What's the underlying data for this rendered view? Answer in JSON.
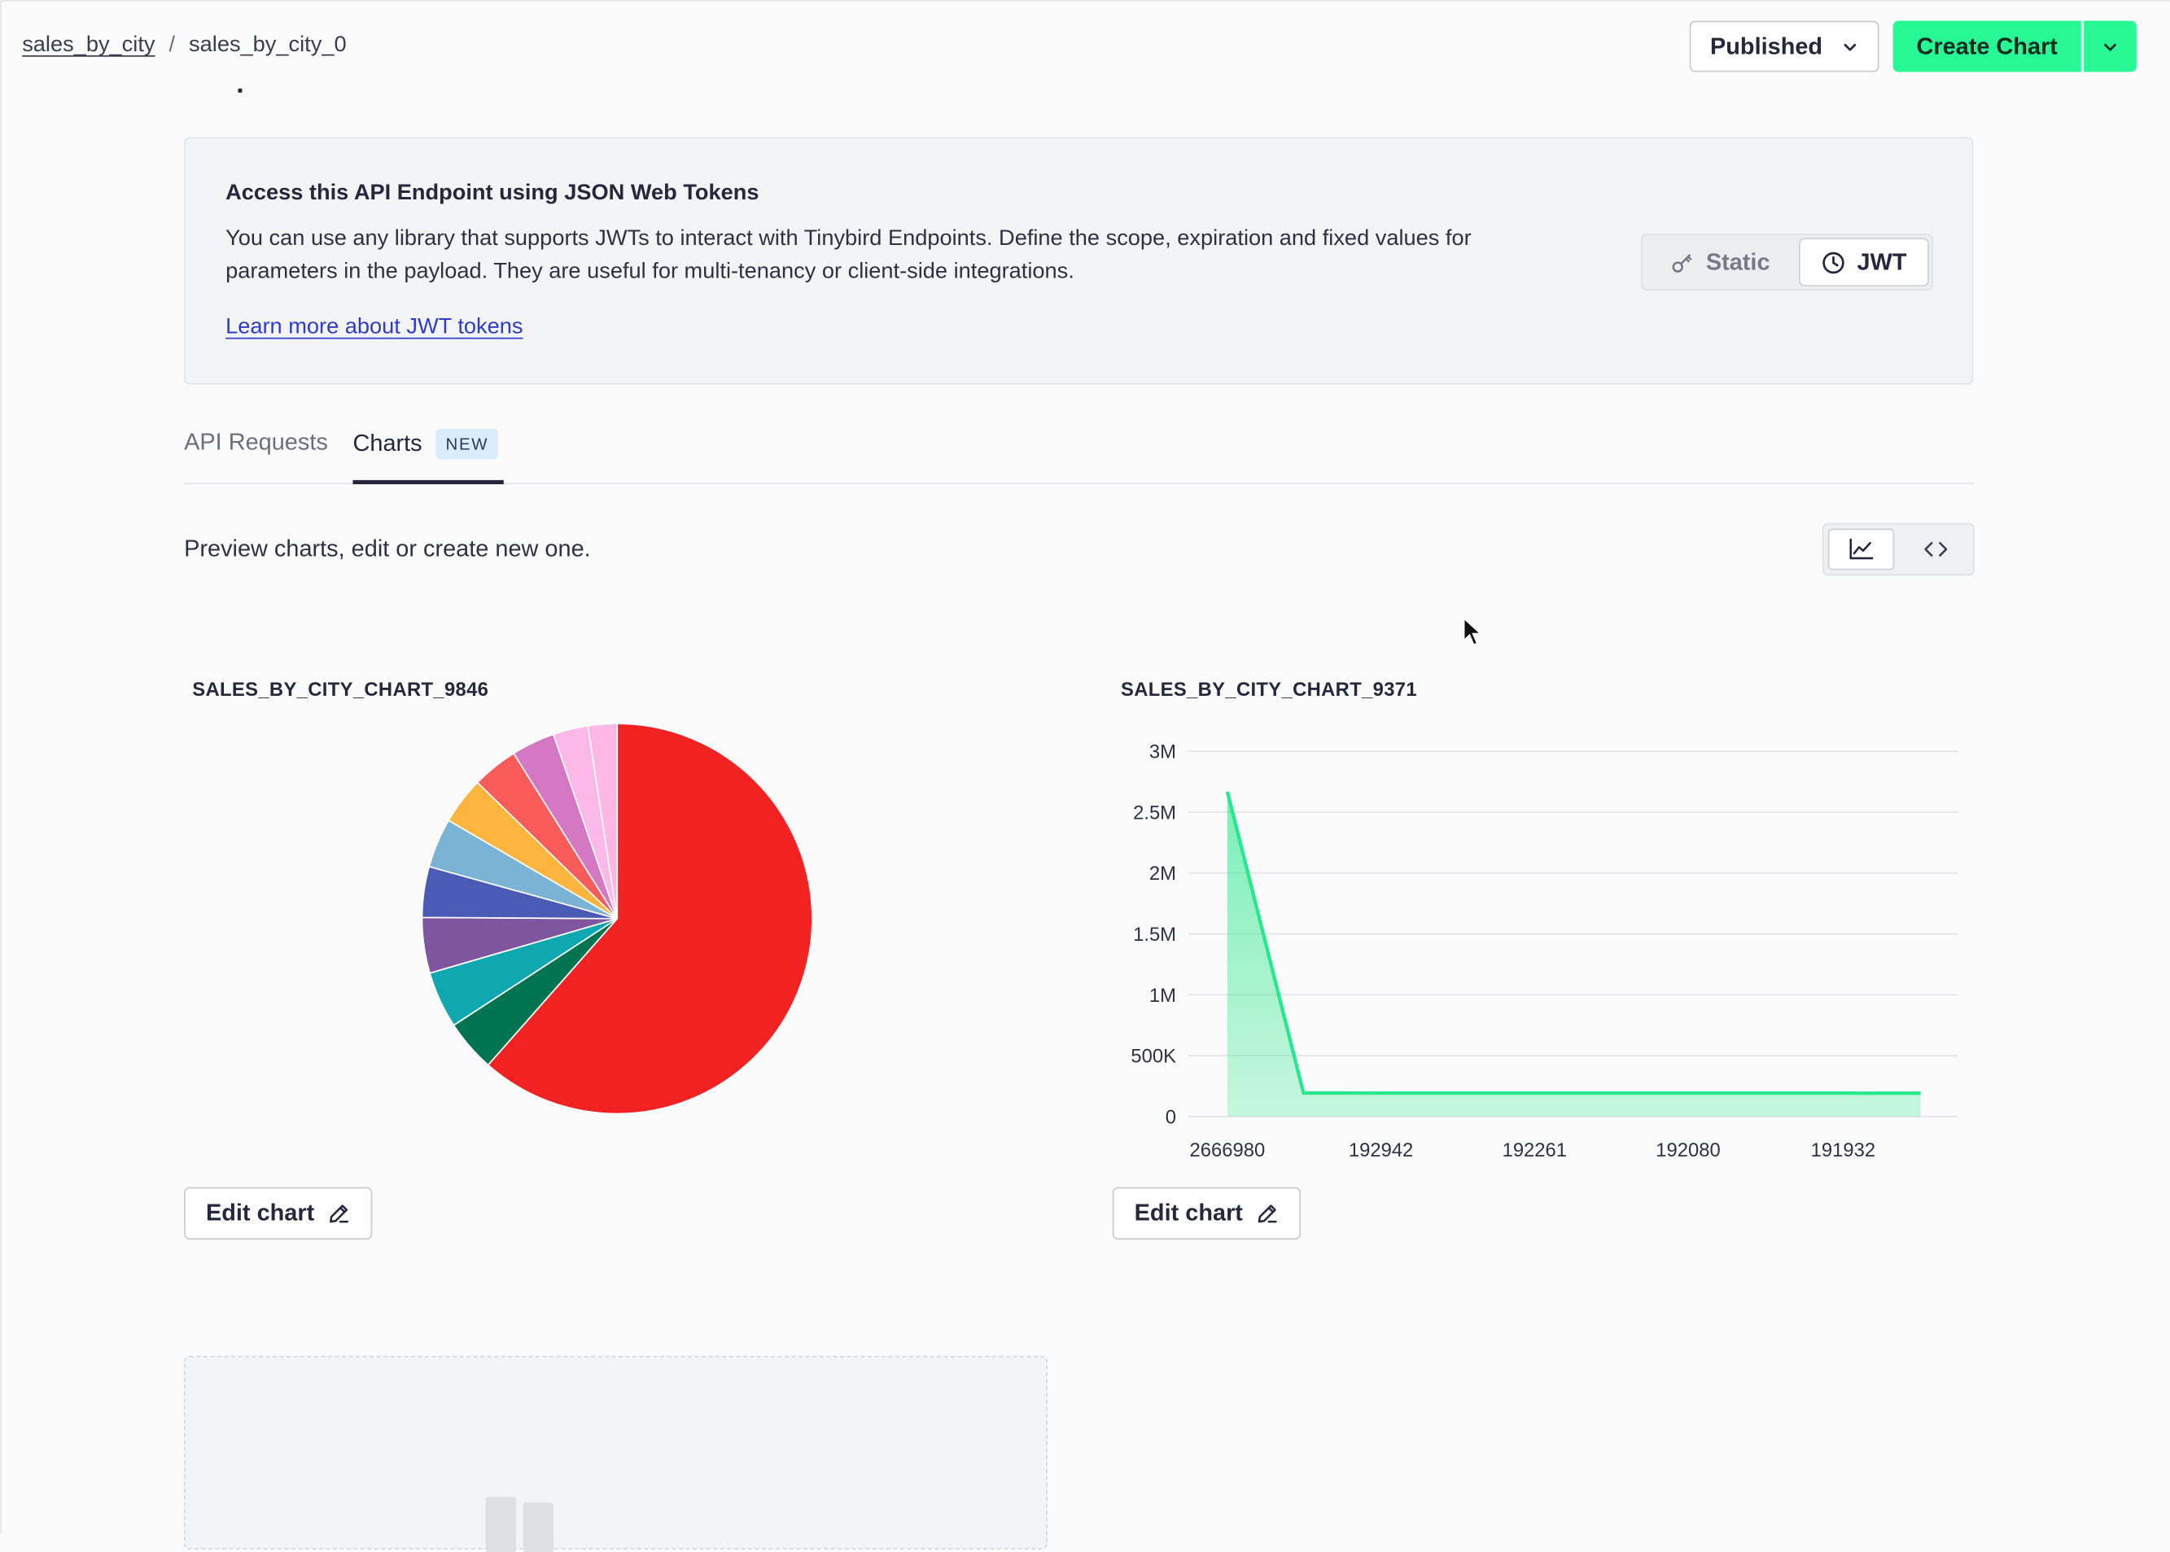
{
  "header": {
    "breadcrumb": [
      "sales_by_city",
      "sales_by_city_0"
    ],
    "breadcrumb_separator": "/",
    "status_button": "Published",
    "create_button": "Create Chart"
  },
  "jwt_info": {
    "title": "Access this API Endpoint using JSON Web Tokens",
    "description": "You can use any library that supports JWTs to interact with Tinybird Endpoints. Define the scope, expiration and fixed values for parameters in the payload. They are useful for multi-tenancy or client-side integrations.",
    "link": "Learn more about JWT tokens",
    "token_types": [
      {
        "label": "Static",
        "icon": "key-icon",
        "selected": false
      },
      {
        "label": "JWT",
        "icon": "clock-icon",
        "selected": true
      }
    ]
  },
  "tabs": [
    {
      "label": "API Requests",
      "active": false
    },
    {
      "label": "Charts",
      "active": true,
      "badge": "NEW"
    }
  ],
  "charts_panel": {
    "description": "Preview charts, edit or create new one.",
    "view_toggle": [
      {
        "icon": "line-chart-icon",
        "selected": true
      },
      {
        "icon": "code-icon",
        "selected": false
      }
    ],
    "edit_label": "Edit chart"
  },
  "chart_data": [
    {
      "type": "pie",
      "title": "SALES_BY_CITY_CHART_9846",
      "values": [
        61.5,
        4.3,
        4.7,
        4.6,
        4.2,
        4.1,
        3.9,
        3.8,
        3.6,
        2.9,
        2.4
      ],
      "colors": [
        "#f22222",
        "#007350",
        "#0fa7b0",
        "#7f55a0",
        "#4a5bb5",
        "#7ab3d4",
        "#feb53d",
        "#fa5c5c",
        "#d478c4",
        "#fbb8e8",
        "#ffb8e6"
      ]
    },
    {
      "type": "area",
      "title": "SALES_BY_CITY_CHART_9371",
      "x_ticks": [
        "2666980",
        "192942",
        "192261",
        "192080",
        "191932"
      ],
      "y_ticks": [
        "0",
        "500K",
        "1M",
        "1.5M",
        "2M",
        "2.5M",
        "3M"
      ],
      "ylim": [
        0,
        3000000
      ],
      "values": [
        2666980,
        192942,
        192700,
        192500,
        192261,
        192150,
        192080,
        192000,
        191950,
        191932,
        191900
      ],
      "color": "#27e88a",
      "grid": true
    }
  ]
}
